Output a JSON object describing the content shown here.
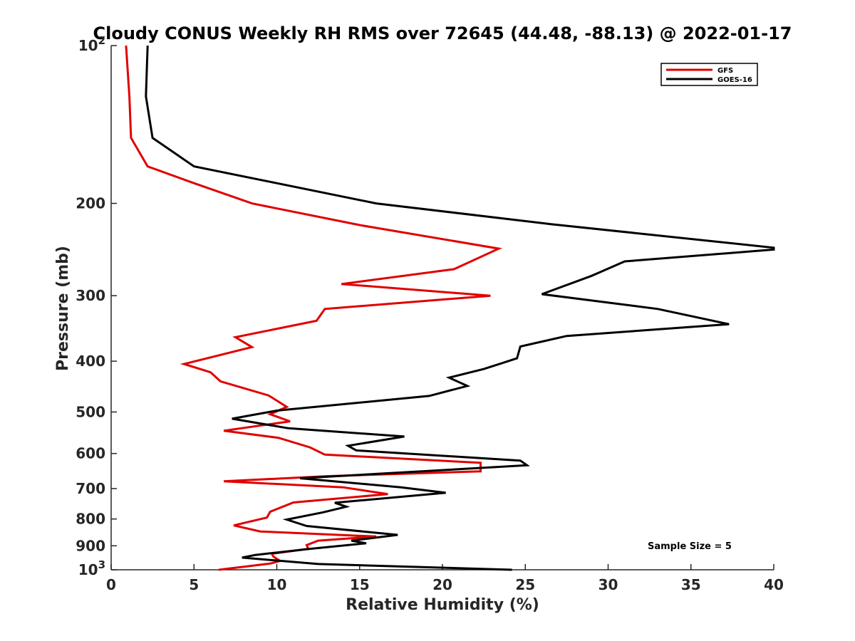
{
  "chart_data": {
    "type": "line",
    "title": "Cloudy CONUS Weekly RH RMS over 72645 (44.48, -88.13) @ 2022-01-17",
    "xlabel": "Relative Humidity (%)",
    "ylabel": "Pressure (mb)",
    "xlim": [
      0,
      40
    ],
    "ylim": [
      100,
      1000
    ],
    "y_scale": "log",
    "y_reversed": true,
    "grid": false,
    "legend_position": "top-right",
    "x_ticks": [
      "0",
      "5",
      "10",
      "15",
      "20",
      "25",
      "30",
      "35",
      "40"
    ],
    "y_ticks": [
      {
        "value": 100,
        "base": "10",
        "exp": "2"
      },
      {
        "value": 200,
        "label": "200"
      },
      {
        "value": 300,
        "label": "300"
      },
      {
        "value": 400,
        "label": "400"
      },
      {
        "value": 500,
        "label": "500"
      },
      {
        "value": 600,
        "label": "600"
      },
      {
        "value": 700,
        "label": "700"
      },
      {
        "value": 800,
        "label": "800"
      },
      {
        "value": 900,
        "label": "900"
      },
      {
        "value": 1000,
        "base": "10",
        "exp": "3"
      }
    ],
    "annotation": "Sample Size = 5",
    "series": [
      {
        "name": "GFS",
        "color": "#e00000",
        "points": [
          [
            0.9,
            100
          ],
          [
            1.1,
            125
          ],
          [
            1.2,
            150
          ],
          [
            2.2,
            170
          ],
          [
            5.0,
            183
          ],
          [
            8.5,
            200
          ],
          [
            15.0,
            220
          ],
          [
            23.4,
            244
          ],
          [
            20.7,
            267
          ],
          [
            13.9,
            285
          ],
          [
            22.9,
            300
          ],
          [
            12.9,
            318
          ],
          [
            12.4,
            335
          ],
          [
            7.5,
            360
          ],
          [
            8.5,
            376
          ],
          [
            4.4,
            405
          ],
          [
            6.0,
            420
          ],
          [
            6.6,
            437
          ],
          [
            9.5,
            465
          ],
          [
            10.6,
            489
          ],
          [
            9.6,
            505
          ],
          [
            10.8,
            521
          ],
          [
            6.8,
            543
          ],
          [
            10.1,
            560
          ],
          [
            12.0,
            584
          ],
          [
            12.9,
            603
          ],
          [
            22.3,
            625
          ],
          [
            22.3,
            649
          ],
          [
            13.0,
            663
          ],
          [
            6.8,
            678
          ],
          [
            14.0,
            696
          ],
          [
            16.7,
            717
          ],
          [
            11.0,
            744
          ],
          [
            9.6,
            775
          ],
          [
            9.4,
            795
          ],
          [
            7.4,
            823
          ],
          [
            9.0,
            845
          ],
          [
            16.0,
            864
          ],
          [
            12.5,
            880
          ],
          [
            11.8,
            897
          ],
          [
            11.9,
            912
          ],
          [
            9.7,
            932
          ],
          [
            9.8,
            944
          ],
          [
            10.2,
            962
          ],
          [
            9.6,
            973
          ],
          [
            6.5,
            1000
          ]
        ]
      },
      {
        "name": "GOES-16",
        "color": "#000000",
        "points": [
          [
            2.2,
            100
          ],
          [
            2.1,
            125
          ],
          [
            2.5,
            150
          ],
          [
            5.0,
            170
          ],
          [
            10.0,
            183
          ],
          [
            16.0,
            200
          ],
          [
            26.5,
            219
          ],
          [
            40.0,
            243
          ],
          [
            40.0,
            245
          ],
          [
            31.0,
            258
          ],
          [
            29.0,
            275
          ],
          [
            26.0,
            298
          ],
          [
            33.0,
            318
          ],
          [
            37.3,
            340
          ],
          [
            27.5,
            358
          ],
          [
            24.7,
            375
          ],
          [
            24.5,
            395
          ],
          [
            22.5,
            414
          ],
          [
            20.4,
            430
          ],
          [
            21.5,
            446
          ],
          [
            19.2,
            466
          ],
          [
            10.0,
            497
          ],
          [
            7.3,
            515
          ],
          [
            10.7,
            537
          ],
          [
            17.7,
            557
          ],
          [
            14.3,
            580
          ],
          [
            14.8,
            592
          ],
          [
            24.7,
            619
          ],
          [
            25.1,
            632
          ],
          [
            11.4,
            669
          ],
          [
            17.5,
            696
          ],
          [
            20.2,
            713
          ],
          [
            13.5,
            745
          ],
          [
            14.2,
            758
          ],
          [
            12.8,
            777
          ],
          [
            10.6,
            802
          ],
          [
            11.8,
            825
          ],
          [
            17.3,
            858
          ],
          [
            14.5,
            880
          ],
          [
            15.4,
            890
          ],
          [
            12.0,
            912
          ],
          [
            8.7,
            937
          ],
          [
            7.9,
            948
          ],
          [
            12.5,
            975
          ],
          [
            24.2,
            1000
          ]
        ]
      }
    ]
  }
}
